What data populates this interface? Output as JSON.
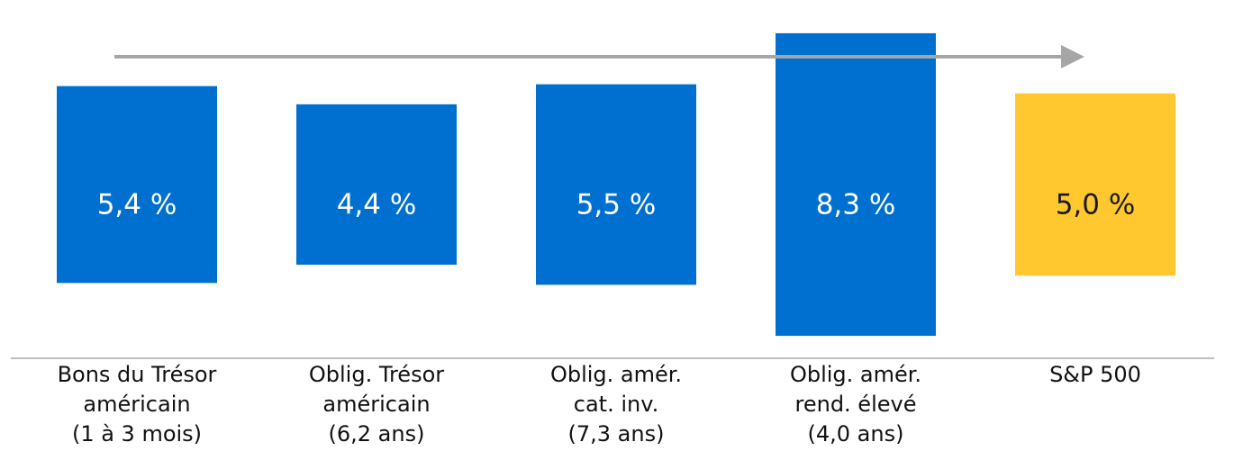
{
  "chart_data": {
    "type": "bar",
    "title": "",
    "xlabel": "",
    "ylabel": "",
    "legend": "none",
    "grid": false,
    "categories": [
      [
        "Bons du Trésor",
        "américain",
        "(1 à 3 mois)"
      ],
      [
        "Oblig. Trésor",
        "américain",
        "(6,2 ans)"
      ],
      [
        "Oblig. amér.",
        "cat. inv.",
        "(7,3 ans)"
      ],
      [
        "Oblig. amér.",
        "rend. élevé",
        "(4,0 ans)"
      ],
      [
        "S&P 500"
      ]
    ],
    "values": [
      5.4,
      4.4,
      5.5,
      8.3,
      5.0
    ],
    "value_labels": [
      "5,4 %",
      "4,4 %",
      "5,5 %",
      "8,3 %",
      "5,0 %"
    ],
    "bar_colors": [
      "#0070D0",
      "#0070D0",
      "#0070D0",
      "#0070D0",
      "#FFC82E"
    ],
    "label_colors": [
      "#ffffff",
      "#ffffff",
      "#ffffff",
      "#ffffff",
      "#1a1a1a"
    ],
    "arrow_color": "#A6A6A6",
    "axis_color": "#BFBFBF"
  }
}
